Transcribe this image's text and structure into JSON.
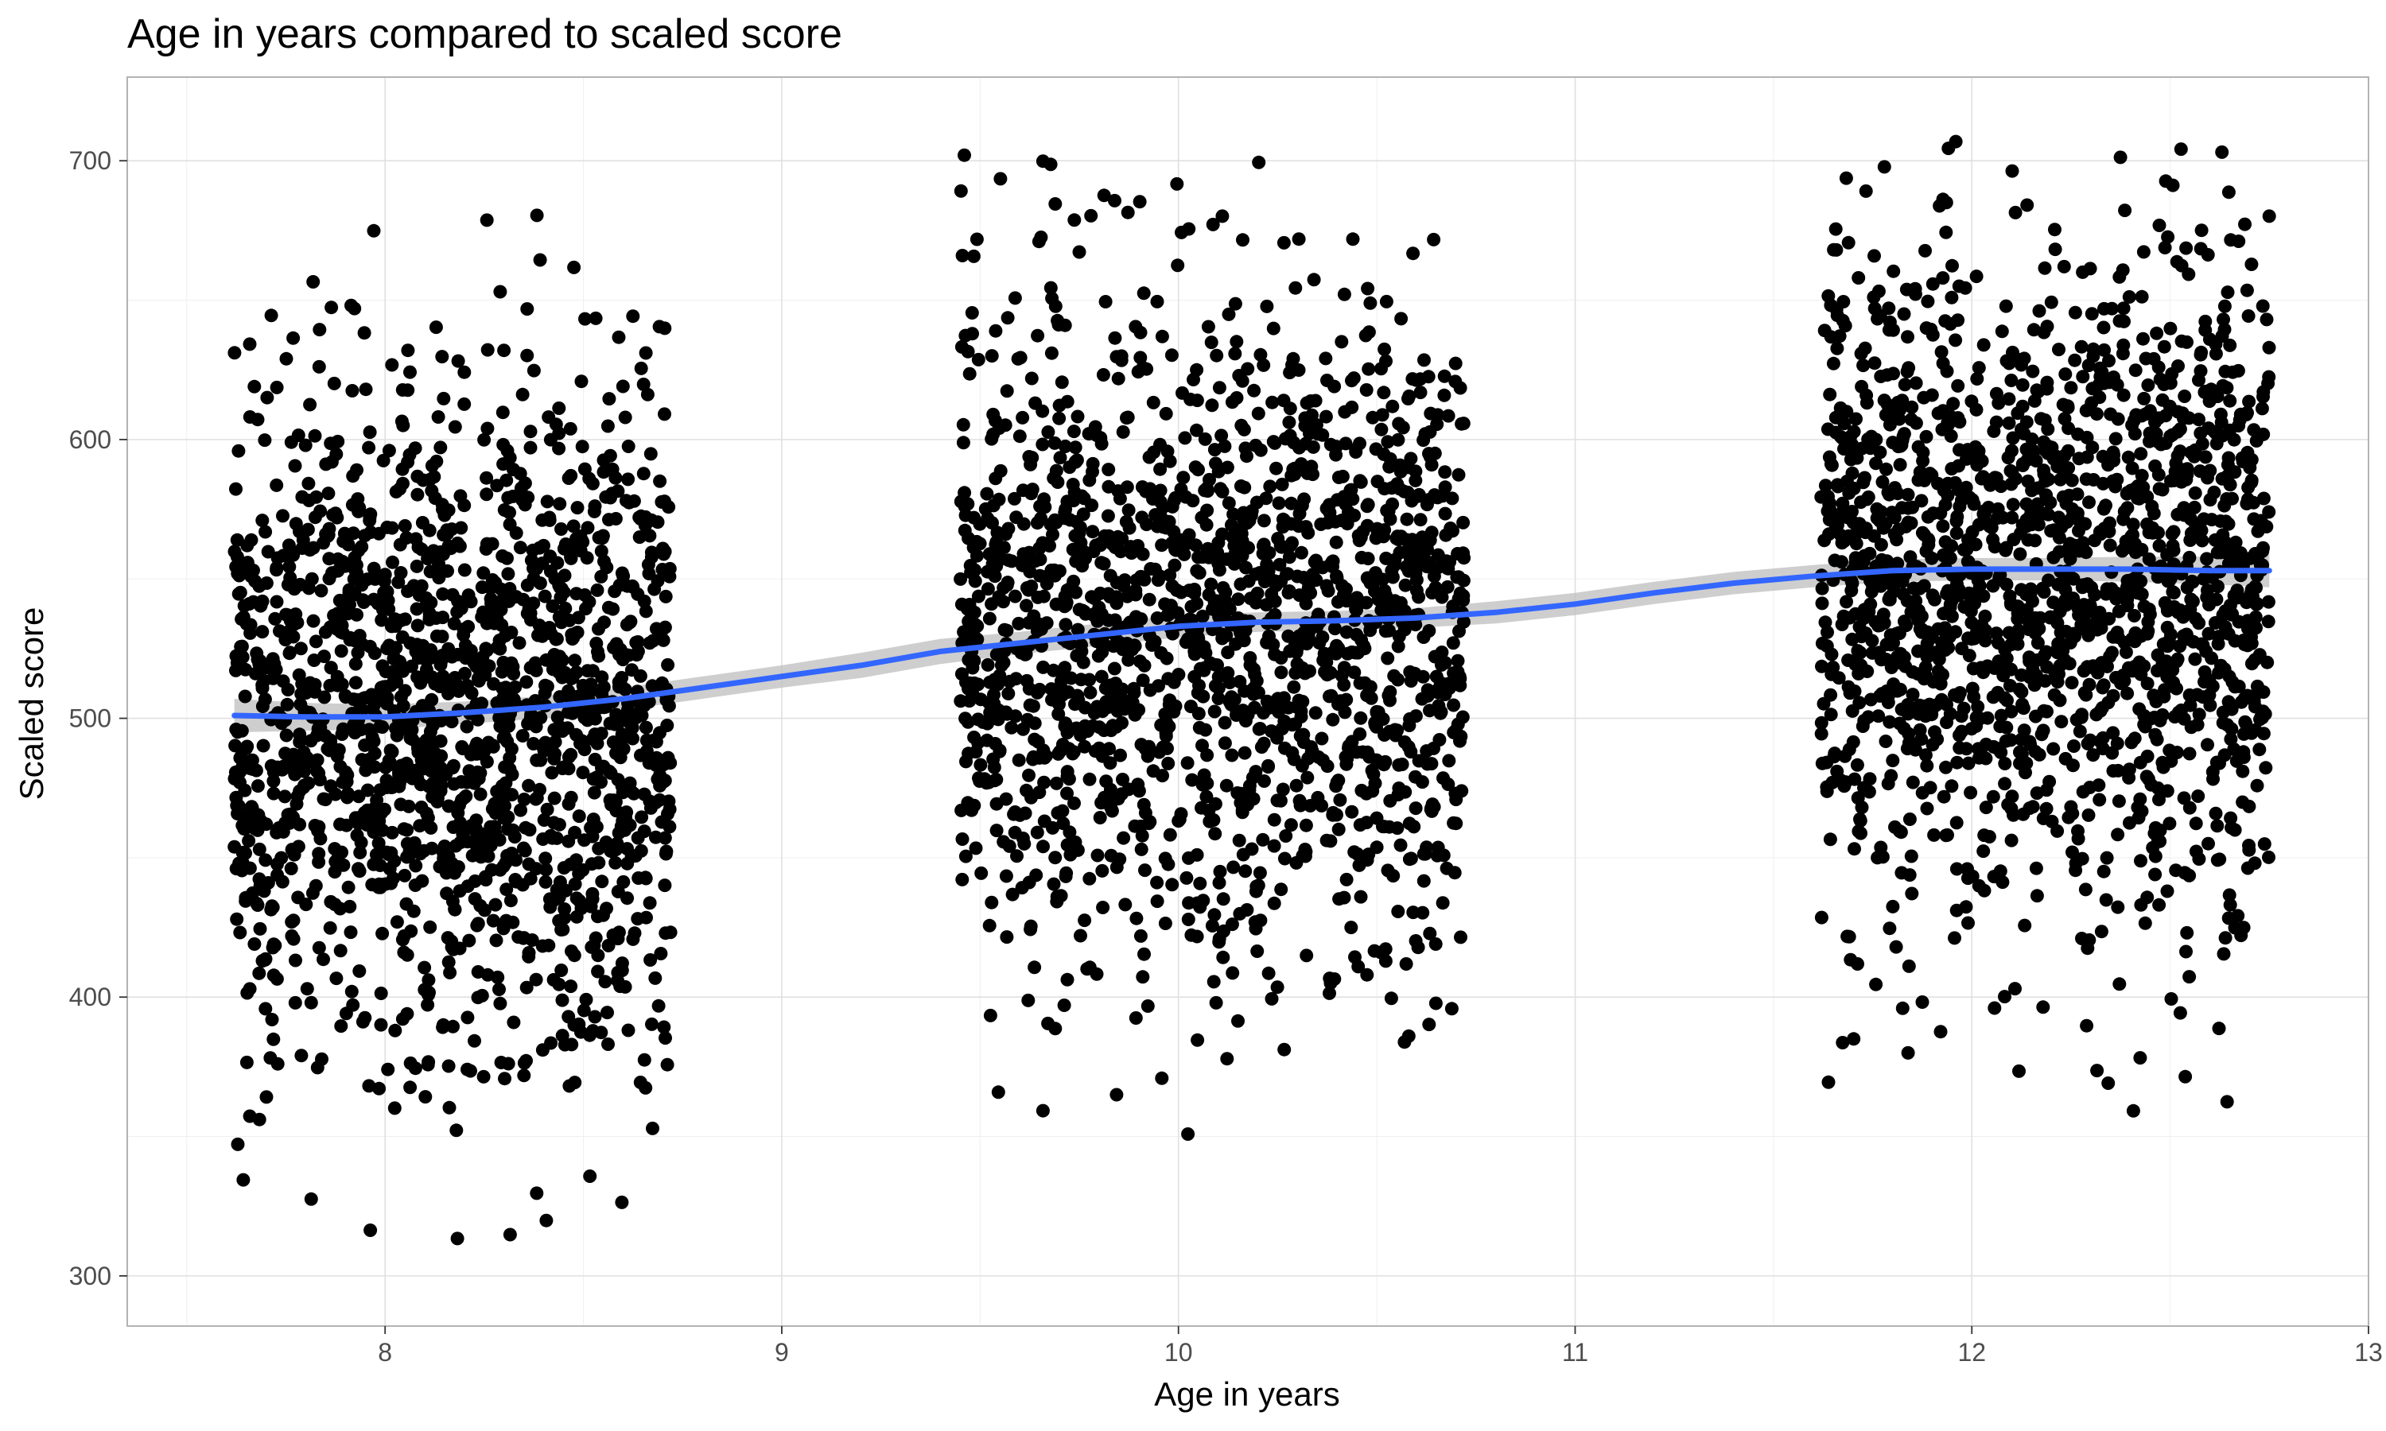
{
  "chart_data": {
    "type": "scatter",
    "title": "Age in years compared to scaled score",
    "xlabel": "Age in years",
    "ylabel": "Scaled score",
    "xlim": [
      7.35,
      13
    ],
    "ylim": [
      282,
      730
    ],
    "xticks": [
      8,
      9,
      10,
      11,
      12,
      13
    ],
    "yticks": [
      300,
      400,
      500,
      600,
      700
    ],
    "grid": true,
    "point_color": "#000000",
    "smooth_color": "#3366ff",
    "ribbon_color": "#bdbdbd",
    "clusters": [
      {
        "x_min": 7.62,
        "x_max": 8.72,
        "y_mean": 500,
        "y_sd": 60,
        "y_min": 302,
        "y_max": 685,
        "n": 1700
      },
      {
        "x_min": 9.45,
        "x_max": 10.72,
        "y_mean": 533,
        "y_sd": 58,
        "y_min": 348,
        "y_max": 708,
        "n": 1700
      },
      {
        "x_min": 11.62,
        "x_max": 12.75,
        "y_mean": 550,
        "y_sd": 58,
        "y_min": 352,
        "y_max": 710,
        "n": 1700
      }
    ],
    "smooth": {
      "x": [
        7.62,
        7.8,
        8.0,
        8.2,
        8.4,
        8.6,
        8.8,
        9.0,
        9.2,
        9.4,
        9.6,
        9.8,
        10.0,
        10.2,
        10.4,
        10.6,
        10.8,
        11.0,
        11.2,
        11.4,
        11.6,
        11.8,
        12.0,
        12.2,
        12.4,
        12.6,
        12.75
      ],
      "y": [
        501,
        500.5,
        500.5,
        502,
        504,
        507,
        511,
        515,
        519,
        524,
        527,
        530,
        533,
        534.5,
        535,
        536,
        538,
        541,
        545,
        548.5,
        551,
        553,
        553.5,
        553.5,
        553.5,
        553,
        553
      ],
      "se": [
        6,
        5,
        4.5,
        4,
        4,
        4,
        4,
        4,
        4.5,
        4.5,
        4,
        4,
        4,
        3.5,
        3.5,
        3.5,
        4,
        4,
        4,
        4,
        4,
        4,
        4,
        4,
        4.5,
        5,
        6
      ]
    }
  }
}
